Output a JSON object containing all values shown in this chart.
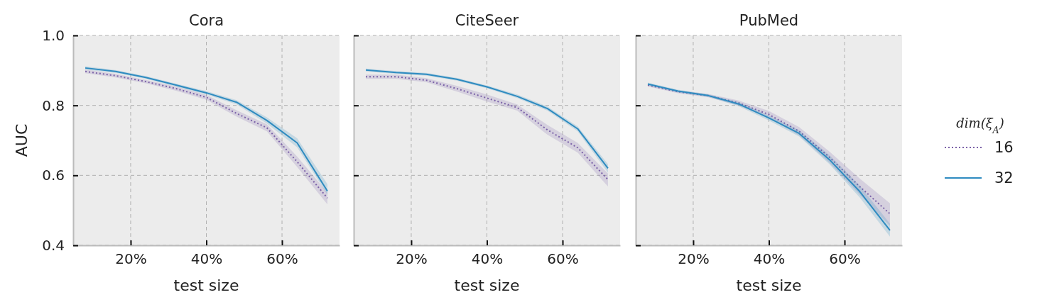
{
  "chart_data": [
    {
      "type": "line",
      "title": "Cora",
      "xlabel": "test size",
      "ylabel": "AUC",
      "x": [
        8,
        16,
        24,
        32,
        40,
        48,
        56,
        64,
        72
      ],
      "xlim": [
        4.8,
        75.2
      ],
      "ylim": [
        0.4,
        1.0
      ],
      "xticks": [
        {
          "value": 20,
          "label": "20%"
        },
        {
          "value": 40,
          "label": "40%"
        },
        {
          "value": 60,
          "label": "60%"
        }
      ],
      "yticks": [
        0.4,
        0.6,
        0.8,
        {
          "value": 1.0,
          "label": "1.0"
        }
      ],
      "grid": true,
      "legend": false,
      "series": [
        {
          "color": "#7b62a8",
          "line_style": "dotted",
          "values": [
            0.897,
            0.885,
            0.868,
            0.848,
            0.823,
            0.777,
            0.736,
            0.639,
            0.535
          ],
          "lower": [
            0.892,
            0.88,
            0.863,
            0.842,
            0.816,
            0.768,
            0.726,
            0.624,
            0.517
          ],
          "upper": [
            0.902,
            0.89,
            0.873,
            0.854,
            0.83,
            0.786,
            0.746,
            0.654,
            0.551
          ]
        },
        {
          "color": "#2e8bc0",
          "line_style": "solid",
          "values": [
            0.907,
            0.897,
            0.88,
            0.858,
            0.836,
            0.809,
            0.757,
            0.693,
            0.555
          ],
          "lower": [
            0.902,
            0.893,
            0.876,
            0.854,
            0.831,
            0.803,
            0.748,
            0.68,
            0.545
          ],
          "upper": [
            0.912,
            0.901,
            0.884,
            0.862,
            0.841,
            0.815,
            0.766,
            0.706,
            0.575
          ]
        }
      ]
    },
    {
      "type": "line",
      "title": "CiteSeer",
      "xlabel": "test size",
      "x": [
        8,
        16,
        24,
        32,
        40,
        48,
        56,
        64,
        72
      ],
      "xlim": [
        4.8,
        75.2
      ],
      "ylim": [
        0.4,
        1.0
      ],
      "xticks": [
        {
          "value": 20,
          "label": "20%"
        },
        {
          "value": 40,
          "label": "40%"
        },
        {
          "value": 60,
          "label": "60%"
        }
      ],
      "yticks": [
        {
          "value": 0.4,
          "label": null
        },
        {
          "value": 0.6,
          "label": null
        },
        {
          "value": 0.8,
          "label": null
        },
        {
          "value": 1.0,
          "label": null
        }
      ],
      "tick_labels": "x",
      "grid": true,
      "legend": false,
      "series": [
        {
          "color": "#7b62a8",
          "line_style": "dotted",
          "values": [
            0.882,
            0.882,
            0.872,
            0.848,
            0.821,
            0.794,
            0.73,
            0.679,
            0.588
          ],
          "lower": [
            0.876,
            0.876,
            0.866,
            0.84,
            0.811,
            0.785,
            0.716,
            0.665,
            0.568
          ],
          "upper": [
            0.888,
            0.888,
            0.878,
            0.856,
            0.831,
            0.803,
            0.744,
            0.693,
            0.605
          ]
        },
        {
          "color": "#2e8bc0",
          "line_style": "solid",
          "values": [
            0.901,
            0.894,
            0.889,
            0.875,
            0.853,
            0.826,
            0.791,
            0.733,
            0.62
          ],
          "lower": [
            0.897,
            0.89,
            0.885,
            0.871,
            0.849,
            0.821,
            0.785,
            0.726,
            0.608
          ],
          "upper": [
            0.905,
            0.898,
            0.893,
            0.879,
            0.857,
            0.831,
            0.797,
            0.74,
            0.632
          ]
        }
      ]
    },
    {
      "type": "line",
      "title": "PubMed",
      "xlabel": "test size",
      "legend_title": "dim(ξ$_{A}$)",
      "x": [
        8,
        16,
        24,
        32,
        40,
        48,
        56,
        64,
        72
      ],
      "xlim": [
        4.8,
        75.2
      ],
      "ylim": [
        0.4,
        1.0
      ],
      "xticks": [
        {
          "value": 20,
          "label": "20%"
        },
        {
          "value": 40,
          "label": "40%"
        },
        {
          "value": 60,
          "label": "60%"
        }
      ],
      "yticks": [
        {
          "value": 0.4,
          "label": null
        },
        {
          "value": 0.6,
          "label": null
        },
        {
          "value": 0.8,
          "label": null
        },
        {
          "value": 1.0,
          "label": null
        }
      ],
      "tick_labels": "x",
      "grid": true,
      "legend": "right",
      "series": [
        {
          "name": "16",
          "color": "#7b62a8",
          "line_style": "dotted",
          "values": [
            0.858,
            0.839,
            0.828,
            0.807,
            0.774,
            0.726,
            0.652,
            0.568,
            0.49
          ],
          "lower": [
            0.854,
            0.835,
            0.823,
            0.8,
            0.764,
            0.714,
            0.636,
            0.545,
            0.455
          ],
          "upper": [
            0.862,
            0.843,
            0.833,
            0.814,
            0.784,
            0.738,
            0.668,
            0.591,
            0.52
          ]
        },
        {
          "name": "32",
          "color": "#2e8bc0",
          "line_style": "solid",
          "values": [
            0.861,
            0.841,
            0.828,
            0.804,
            0.764,
            0.72,
            0.645,
            0.554,
            0.443
          ],
          "lower": [
            0.857,
            0.837,
            0.824,
            0.798,
            0.757,
            0.711,
            0.632,
            0.537,
            0.425
          ],
          "upper": [
            0.865,
            0.845,
            0.832,
            0.81,
            0.771,
            0.729,
            0.658,
            0.571,
            0.462
          ]
        }
      ]
    }
  ]
}
